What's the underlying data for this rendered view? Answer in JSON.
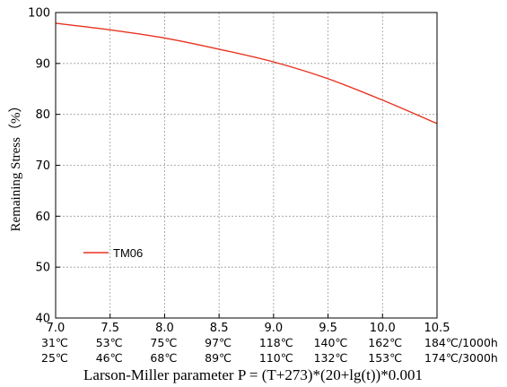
{
  "colors": {
    "series": "#e8321e",
    "grid": "#9a9a9a",
    "axis": "#000000"
  },
  "chart_data": {
    "type": "line",
    "xlabel": "Larson-Miller parameter  P = (T+273)*(20+lg(t))*0.001",
    "ylabel": "Remaining Stress（%）",
    "xlim": [
      7.0,
      10.5
    ],
    "ylim": [
      40,
      100
    ],
    "x_ticks": [
      "7.0",
      "7.5",
      "8.0",
      "8.5",
      "9.0",
      "9.5",
      "10.0",
      "10.5"
    ],
    "y_ticks": [
      "40",
      "50",
      "60",
      "70",
      "80",
      "90",
      "100"
    ],
    "x_tick_rows": [
      [
        "31℃",
        "53℃",
        "75℃",
        "97℃",
        "118℃",
        "140℃",
        "162℃",
        "184℃/1000h"
      ],
      [
        "25℃",
        "46℃",
        "68℃",
        "89℃",
        "110℃",
        "132℃",
        "153℃",
        "174℃/3000h"
      ]
    ],
    "grid": true,
    "legend_position": "lower-left",
    "series": [
      {
        "name": "TM06",
        "x": [
          7.0,
          7.5,
          8.0,
          8.5,
          9.0,
          9.5,
          10.0,
          10.5
        ],
        "y": [
          97.9,
          96.6,
          95.0,
          92.8,
          90.3,
          87.0,
          82.8,
          78.2
        ]
      }
    ]
  }
}
